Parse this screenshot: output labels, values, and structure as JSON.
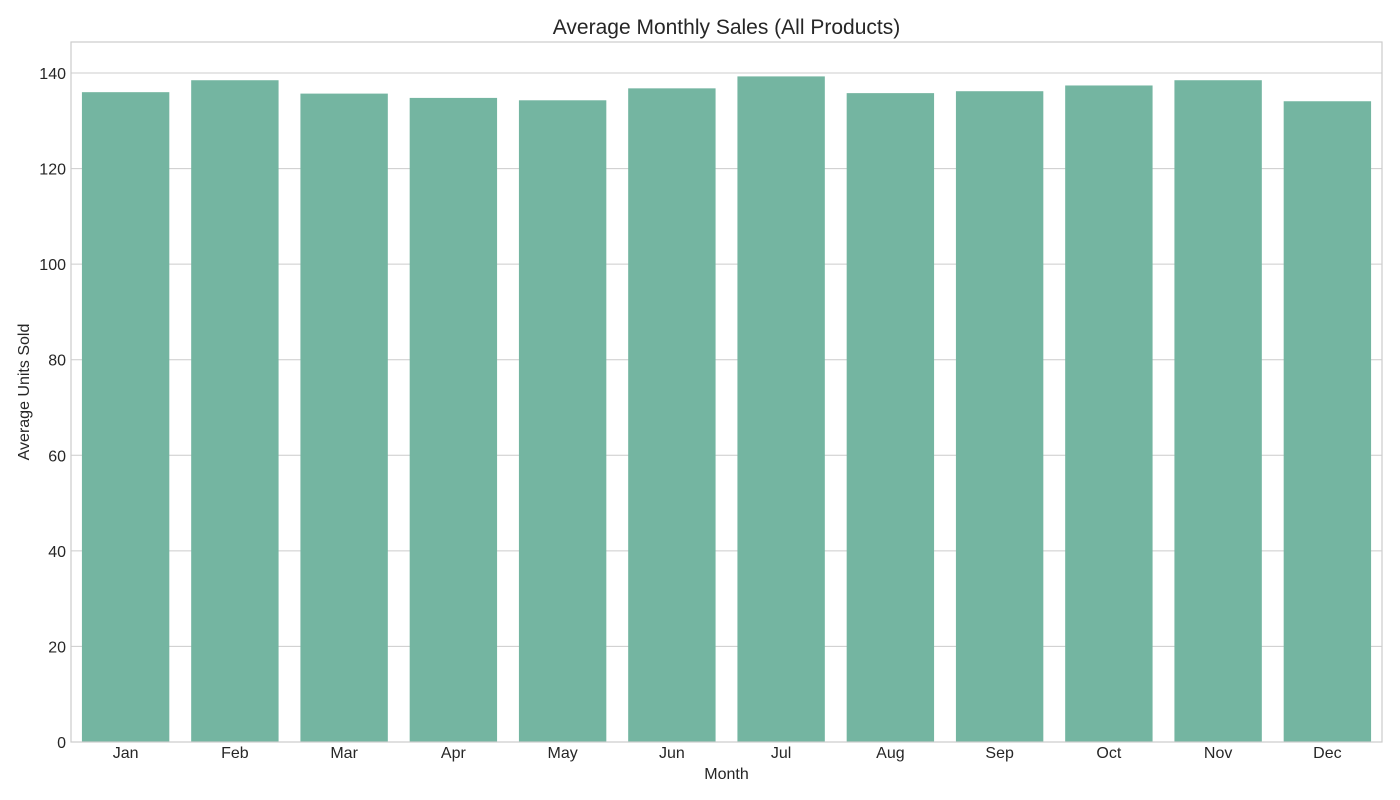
{
  "chart_data": {
    "type": "bar",
    "title": "Average Monthly Sales (All Products)",
    "xlabel": "Month",
    "ylabel": "Average Units Sold",
    "categories": [
      "Jan",
      "Feb",
      "Mar",
      "Apr",
      "May",
      "Jun",
      "Jul",
      "Aug",
      "Sep",
      "Oct",
      "Nov",
      "Dec"
    ],
    "values": [
      136.0,
      138.5,
      135.7,
      134.8,
      134.3,
      136.8,
      139.3,
      135.8,
      136.2,
      137.4,
      138.5,
      134.1
    ],
    "ylim": [
      0,
      146.5
    ],
    "yticks": [
      0,
      20,
      40,
      60,
      80,
      100,
      120,
      140
    ],
    "grid": true,
    "bar_color": "#74b5a1",
    "grid_color": "#cccccc",
    "text_color": "#262626"
  }
}
